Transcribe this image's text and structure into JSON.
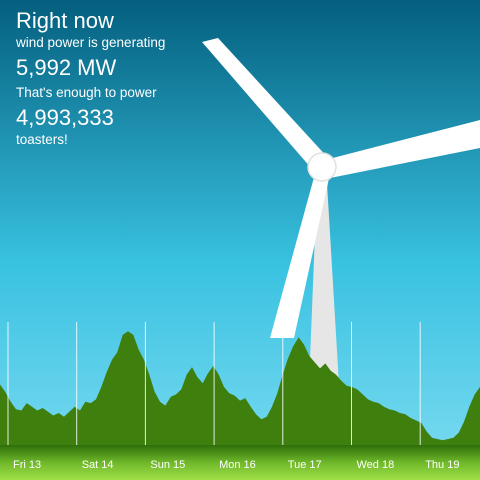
{
  "headline": {
    "title": "Right now",
    "generating_label": "wind power is generating",
    "power_value": "5,992 MW",
    "equivalence_label": "That's enough to power",
    "toaster_count": "4,993,333",
    "suffix": "toasters!"
  },
  "chart_data": {
    "type": "area",
    "title": "",
    "xlabel": "",
    "ylabel": "",
    "days": [
      "Fri 13",
      "Sat 14",
      "Sun 15",
      "Mon 16",
      "Tue 17",
      "Wed 18",
      "Thu 19"
    ],
    "values": [
      0.48,
      0.42,
      0.34,
      0.28,
      0.27,
      0.33,
      0.3,
      0.27,
      0.29,
      0.26,
      0.23,
      0.25,
      0.22,
      0.26,
      0.3,
      0.27,
      0.34,
      0.33,
      0.36,
      0.46,
      0.58,
      0.68,
      0.74,
      0.88,
      0.91,
      0.88,
      0.76,
      0.68,
      0.56,
      0.42,
      0.34,
      0.31,
      0.38,
      0.4,
      0.44,
      0.56,
      0.62,
      0.54,
      0.49,
      0.57,
      0.63,
      0.56,
      0.46,
      0.41,
      0.39,
      0.35,
      0.37,
      0.3,
      0.24,
      0.2,
      0.22,
      0.3,
      0.41,
      0.56,
      0.69,
      0.79,
      0.86,
      0.8,
      0.71,
      0.66,
      0.61,
      0.65,
      0.59,
      0.56,
      0.51,
      0.47,
      0.46,
      0.44,
      0.4,
      0.36,
      0.34,
      0.33,
      0.3,
      0.28,
      0.27,
      0.25,
      0.24,
      0.21,
      0.19,
      0.17,
      0.1,
      0.05,
      0.04,
      0.03,
      0.04,
      0.05,
      0.09,
      0.18,
      0.3,
      0.4,
      0.46
    ],
    "colors": {
      "area": "#3e7f0e",
      "gridline": "#ffffff",
      "sky_top": "#045f7e",
      "sky_mid": "#39c2e1",
      "sky_bottom": "#7fdcf2",
      "ground": "#8ed83a"
    }
  }
}
